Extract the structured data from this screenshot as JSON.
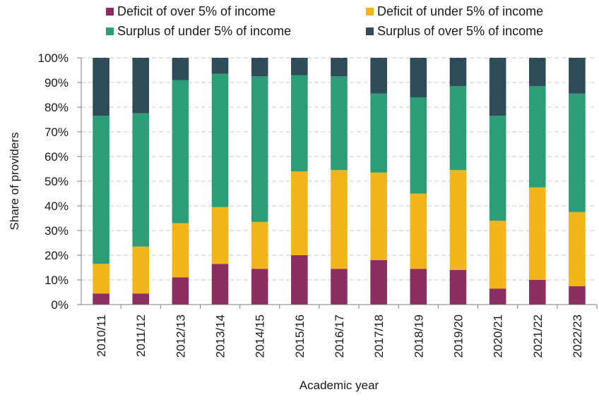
{
  "chart_data": {
    "type": "bar",
    "stacked": true,
    "xlabel": "Academic year",
    "ylabel": "Share of providers",
    "ylim": [
      0,
      100
    ],
    "y_ticks": [
      "0%",
      "10%",
      "20%",
      "30%",
      "40%",
      "50%",
      "60%",
      "70%",
      "80%",
      "90%",
      "100%"
    ],
    "grid": true,
    "legend_position": "top",
    "categories": [
      "2010/11",
      "2011/12",
      "2012/13",
      "2013/14",
      "2014/15",
      "2015/16",
      "2016/17",
      "2017/18",
      "2018/19",
      "2019/20",
      "2020/21",
      "2021/22",
      "2022/23"
    ],
    "series": [
      {
        "name": "Deficit of over 5% of income",
        "color": "#8b2e62",
        "values": [
          4.5,
          4.5,
          11,
          16.5,
          14.5,
          20,
          14.5,
          18,
          14.5,
          14,
          6.5,
          10,
          7.5
        ]
      },
      {
        "name": "Deficit of under 5% of income",
        "color": "#f2b51b",
        "values": [
          12,
          19,
          22,
          23,
          19,
          34,
          40,
          35.5,
          30.5,
          40.5,
          27.5,
          37.5,
          30
        ]
      },
      {
        "name": "Surplus of under 5% of income",
        "color": "#2b9e78",
        "values": [
          60,
          54,
          58,
          54,
          59,
          39,
          38,
          32,
          39,
          34,
          42.5,
          41,
          48
        ]
      },
      {
        "name": "Surplus of over 5% of income",
        "color": "#2e4b57",
        "values": [
          23.5,
          22.5,
          9,
          6.5,
          7.5,
          7,
          7.5,
          14.5,
          16,
          11.5,
          23.5,
          11.5,
          14.5
        ]
      }
    ]
  }
}
